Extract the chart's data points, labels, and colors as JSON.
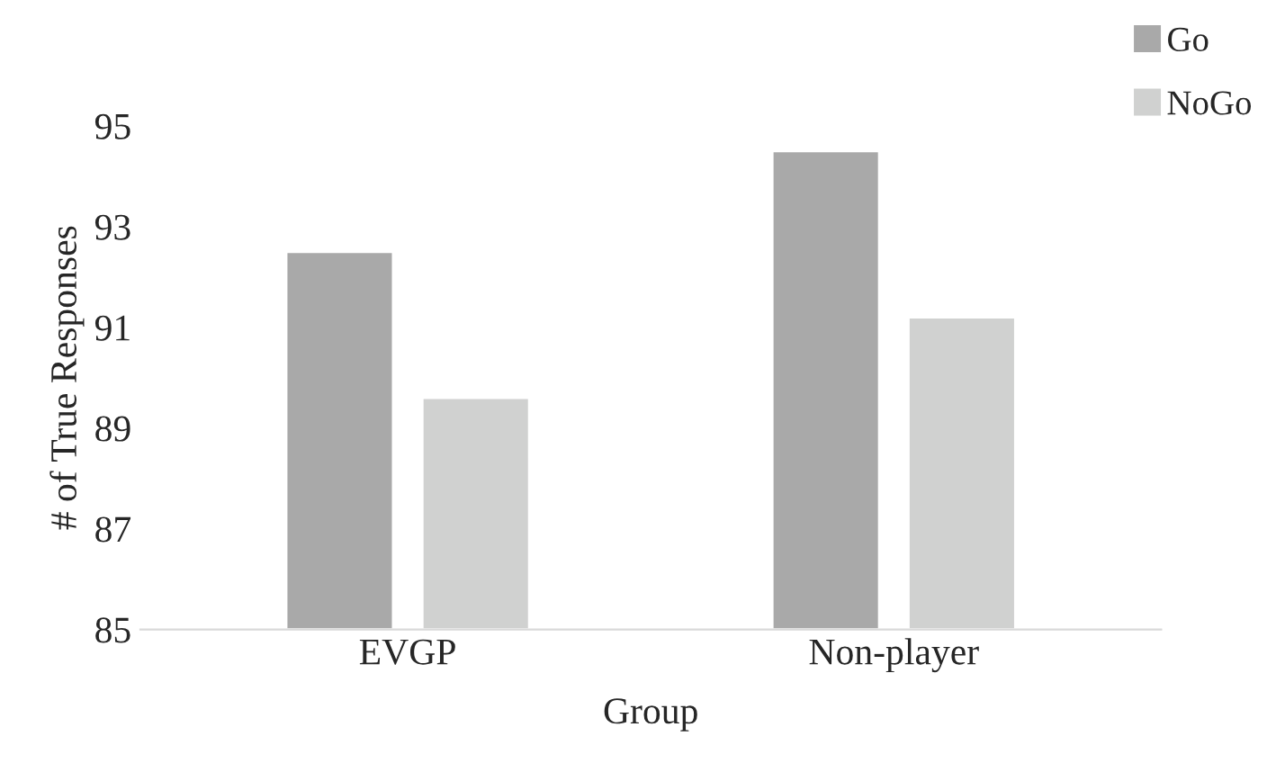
{
  "chart_data": {
    "type": "bar",
    "xlabel": "Group",
    "ylabel": "# of True Responses",
    "categories": [
      "EVGP",
      "Non-player"
    ],
    "series": [
      {
        "name": "Go",
        "color": "#a9a9a9",
        "values": [
          92.5,
          94.5
        ]
      },
      {
        "name": "NoGo",
        "color": "#d0d1d0",
        "values": [
          89.6,
          91.2
        ]
      }
    ],
    "ylim": [
      85,
      95
    ],
    "yticks": [
      85,
      87,
      89,
      91,
      93,
      95
    ],
    "grid": false,
    "legend": "top right"
  }
}
